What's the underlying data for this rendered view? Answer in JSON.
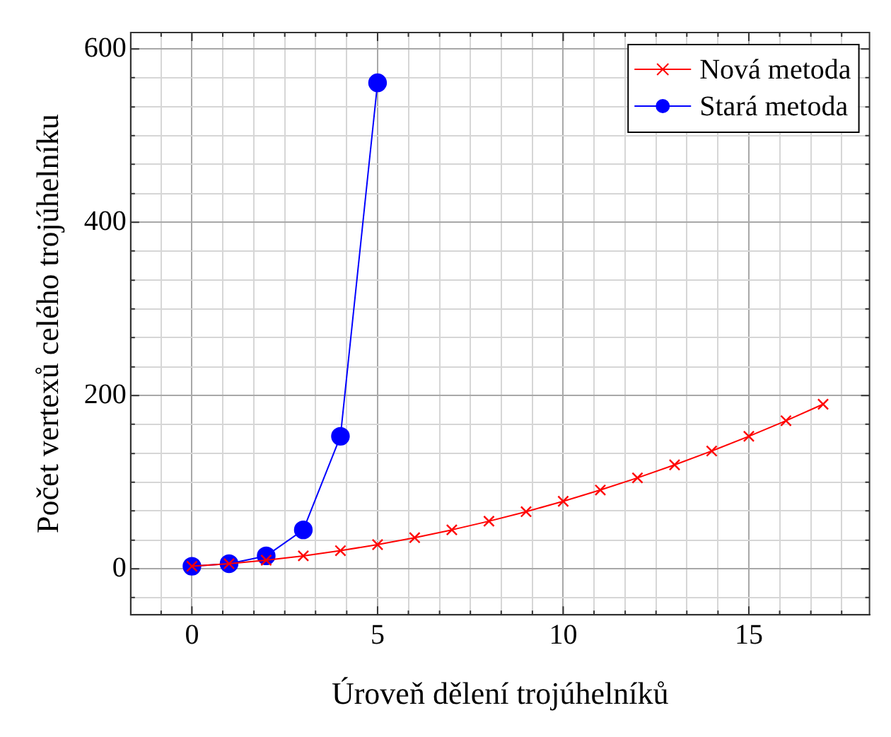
{
  "chart_data": {
    "type": "line",
    "xlabel": "Úroveň dělení trojúhelníků",
    "ylabel": "Počet vertexů celého trojúhelníku",
    "x": [
      0,
      1,
      2,
      3,
      4,
      5,
      6,
      7,
      8,
      9,
      10,
      11,
      12,
      13,
      14,
      15,
      16,
      17
    ],
    "series": [
      {
        "name": "Nová metoda",
        "color": "#ff0000",
        "marker": "cross",
        "values": [
          3,
          6,
          10,
          15,
          21,
          28,
          36,
          45,
          55,
          66,
          78,
          91,
          105,
          120,
          136,
          153,
          171,
          190
        ]
      },
      {
        "name": "Stará metoda",
        "color": "#0000ff",
        "marker": "circle",
        "x": [
          0,
          1,
          2,
          3,
          4,
          5
        ],
        "values": [
          3,
          6,
          15,
          45,
          153,
          561
        ]
      }
    ],
    "xlim": [
      -1.65,
      18.25
    ],
    "ylim": [
      -53,
      619
    ],
    "xticks": [
      {
        "value": -0.83,
        "label": null
      },
      0,
      {
        "value": 0.83,
        "label": null
      },
      {
        "value": 1.67,
        "label": null
      },
      {
        "value": 2.5,
        "label": null
      },
      {
        "value": 3.33,
        "label": null
      },
      {
        "value": 4.17,
        "label": null
      },
      5,
      {
        "value": 5.83,
        "label": null
      },
      {
        "value": 6.67,
        "label": null
      },
      {
        "value": 7.5,
        "label": null
      },
      {
        "value": 8.33,
        "label": null
      },
      {
        "value": 9.17,
        "label": null
      },
      10,
      {
        "value": 10.83,
        "label": null
      },
      {
        "value": 11.67,
        "label": null
      },
      {
        "value": 12.5,
        "label": null
      },
      {
        "value": 13.33,
        "label": null
      },
      {
        "value": 14.17,
        "label": null
      },
      15,
      {
        "value": 15.83,
        "label": null
      },
      {
        "value": 16.67,
        "label": null
      },
      {
        "value": 17.5,
        "label": null
      }
    ],
    "yticks": [
      {
        "value": -33,
        "label": null
      },
      0,
      {
        "value": 33,
        "label": null
      },
      {
        "value": 67,
        "label": null
      },
      {
        "value": 100,
        "label": null
      },
      {
        "value": 133,
        "label": null
      },
      {
        "value": 167,
        "label": null
      },
      200,
      {
        "value": 233,
        "label": null
      },
      {
        "value": 267,
        "label": null
      },
      {
        "value": 300,
        "label": null
      },
      {
        "value": 333,
        "label": null
      },
      {
        "value": 367,
        "label": null
      },
      400,
      {
        "value": 433,
        "label": null
      },
      {
        "value": 467,
        "label": null
      },
      {
        "value": 500,
        "label": null
      },
      {
        "value": 533,
        "label": null
      },
      {
        "value": 567,
        "label": null
      },
      600
    ],
    "grid": true,
    "legend": "top right",
    "line_style": "solid"
  }
}
